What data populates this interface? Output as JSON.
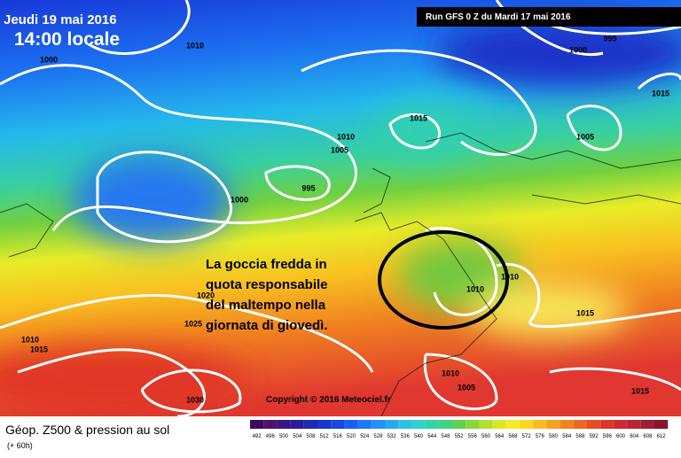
{
  "header": {
    "date": "Jeudi 19 mai 2016",
    "time": "14:00 locale",
    "run": "Run GFS 0 Z du Mardi 17 mai 2016"
  },
  "isobars": [
    1010,
    1000,
    995,
    1000,
    1015,
    1015,
    1010,
    1005,
    1005,
    995,
    1000,
    1010,
    1010,
    1015,
    1020,
    1025,
    1010,
    1015,
    1030,
    1010,
    1005,
    1015
  ],
  "annotation": [
    "La goccia fredda in",
    "quota responsabile",
    "del maltempo nella",
    "giornata di giovedì."
  ],
  "copyright": "Copyright © 2016 Meteociel.fr",
  "footer": {
    "title": "Géop. Z500 & pression au sol",
    "lead": "(+ 60h)"
  },
  "legend": {
    "values": [
      492,
      496,
      500,
      504,
      508,
      512,
      516,
      520,
      524,
      528,
      532,
      536,
      540,
      544,
      548,
      552,
      556,
      560,
      564,
      568,
      572,
      576,
      580,
      584,
      588,
      592,
      596,
      600,
      604,
      608,
      612
    ],
    "colors": [
      "#3c0c5c",
      "#50106c",
      "#3c1484",
      "#2c1c9c",
      "#2028b4",
      "#1838cc",
      "#1848e0",
      "#1860f0",
      "#1c78f4",
      "#2490f4",
      "#28a8f0",
      "#2cc0e8",
      "#30d0d0",
      "#30d4a8",
      "#40d480",
      "#60d050",
      "#88d838",
      "#b0e030",
      "#d8e828",
      "#f4ec28",
      "#f8d820",
      "#f8bc20",
      "#f4a020",
      "#f08420",
      "#ec6820",
      "#e84c24",
      "#e03428",
      "#d02830",
      "#b82434",
      "#a01c34",
      "#881430"
    ]
  }
}
